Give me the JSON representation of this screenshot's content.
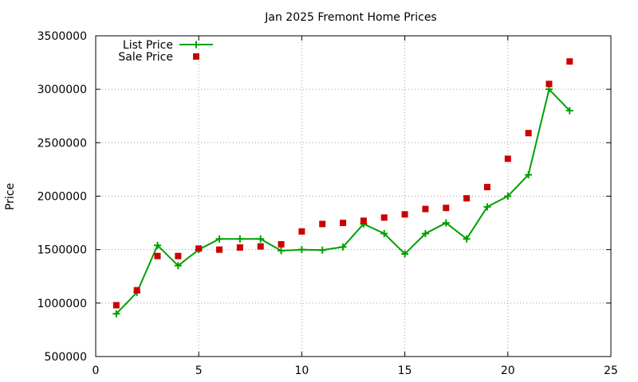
{
  "chart_data": {
    "type": "line",
    "title": "Jan 2025 Fremont Home Prices",
    "xlabel": "",
    "ylabel": "Price",
    "xlim": [
      0,
      25
    ],
    "ylim": [
      500000,
      3500000
    ],
    "xticks": [
      0,
      5,
      10,
      15,
      20,
      25
    ],
    "yticks": [
      500000,
      1000000,
      1500000,
      2000000,
      2500000,
      3000000,
      3500000
    ],
    "grid": true,
    "legend": "top-left",
    "colors": {
      "list": "#00a000",
      "sale": "#cc0000"
    },
    "series": [
      {
        "name": "List Price",
        "style": "line-plus",
        "x": [
          1,
          2,
          3,
          4,
          5,
          6,
          7,
          8,
          9,
          10,
          11,
          12,
          13,
          14,
          15,
          16,
          17,
          18,
          19,
          20,
          21,
          22,
          23
        ],
        "y": [
          900000,
          1100000,
          1540000,
          1350000,
          1500000,
          1600000,
          1600000,
          1600000,
          1490000,
          1500000,
          1495000,
          1525000,
          1740000,
          1650000,
          1460000,
          1650000,
          1750000,
          1600000,
          1900000,
          2000000,
          2200000,
          3000000,
          2800000
        ]
      },
      {
        "name": "Sale Price",
        "style": "squares",
        "x": [
          1,
          2,
          3,
          4,
          5,
          6,
          7,
          8,
          9,
          10,
          11,
          12,
          13,
          14,
          15,
          16,
          17,
          18,
          19,
          20,
          21,
          22,
          23
        ],
        "y": [
          980000,
          1120000,
          1440000,
          1440000,
          1510000,
          1500000,
          1520000,
          1530000,
          1550000,
          1670000,
          1740000,
          1750000,
          1770000,
          1800000,
          1830000,
          1880000,
          1890000,
          1980000,
          2085000,
          2350000,
          2590000,
          3050000,
          3260000
        ]
      }
    ]
  }
}
